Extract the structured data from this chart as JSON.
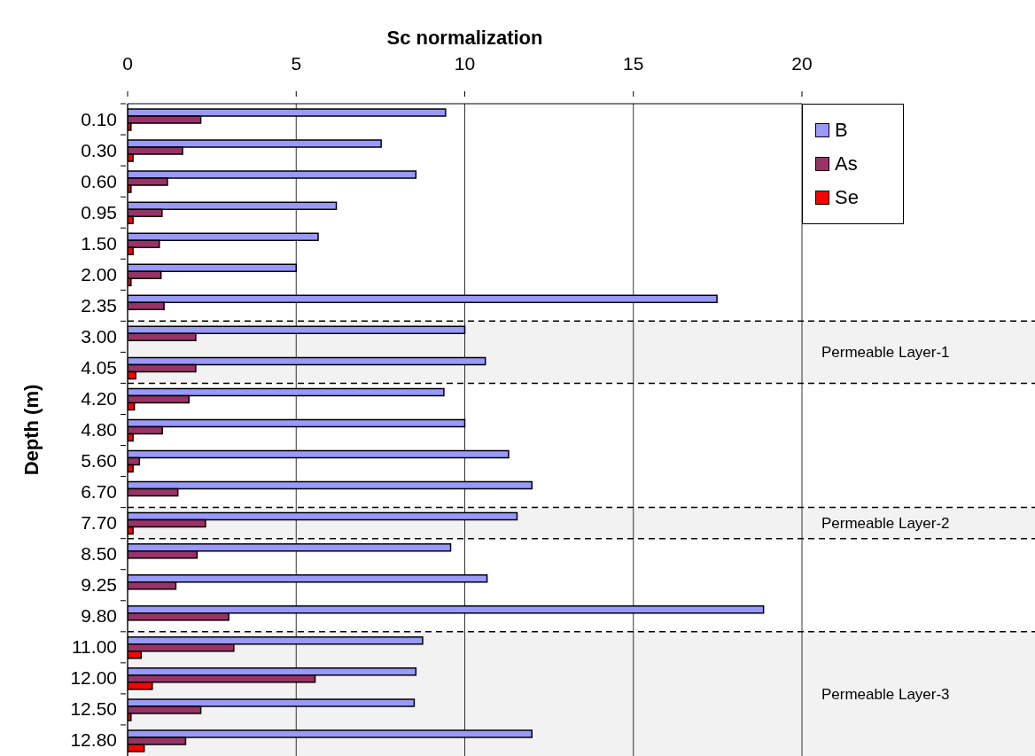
{
  "chart_data": {
    "type": "bar",
    "orientation": "horizontal",
    "xlabel": "Sc normalization",
    "ylabel": "Depth (m)",
    "categories": [
      "0.10",
      "0.30",
      "0.60",
      "0.95",
      "1.50",
      "2.00",
      "2.35",
      "3.00",
      "4.05",
      "4.20",
      "4.80",
      "5.60",
      "6.70",
      "7.70",
      "8.50",
      "9.25",
      "9.80",
      "11.00",
      "12.00",
      "12.50",
      "12.80"
    ],
    "series": [
      {
        "name": "B",
        "color": "#9999ff",
        "values": [
          9.43,
          7.52,
          8.55,
          6.19,
          5.65,
          5.0,
          17.48,
          10.0,
          10.61,
          9.38,
          10.0,
          11.3,
          11.99,
          11.55,
          9.58,
          10.66,
          18.86,
          8.75,
          8.55,
          8.5,
          11.99
        ]
      },
      {
        "name": "As",
        "color": "#993366",
        "values": [
          2.17,
          1.63,
          1.18,
          1.02,
          0.94,
          0.99,
          1.08,
          2.02,
          2.02,
          1.82,
          1.03,
          0.35,
          1.49,
          2.31,
          2.06,
          1.43,
          3.0,
          3.15,
          5.56,
          2.17,
          1.72
        ]
      },
      {
        "name": "Se",
        "color": "#ff0000",
        "values": [
          0.1,
          0.16,
          0.1,
          0.16,
          0.16,
          0.1,
          null,
          null,
          0.24,
          0.2,
          0.16,
          0.16,
          null,
          0.16,
          null,
          null,
          null,
          0.4,
          0.73,
          0.1,
          0.49
        ]
      }
    ],
    "xlim": [
      0,
      20
    ],
    "xticks": [
      0,
      5,
      10,
      15,
      20
    ],
    "grid": "x",
    "legend": "right",
    "bands": [
      {
        "axis": "y",
        "from": "3.00",
        "to": "4.05",
        "label": "Permeable Layer-1",
        "color": "#f2f2f2"
      },
      {
        "axis": "y",
        "from": "7.70",
        "to": "7.70",
        "label": "Permeable Layer-2",
        "color": "#f2f2f2"
      },
      {
        "axis": "y",
        "from": "11.00",
        "to": "12.80",
        "label": "Permeable Layer-3",
        "color": "#f2f2f2"
      }
    ]
  }
}
